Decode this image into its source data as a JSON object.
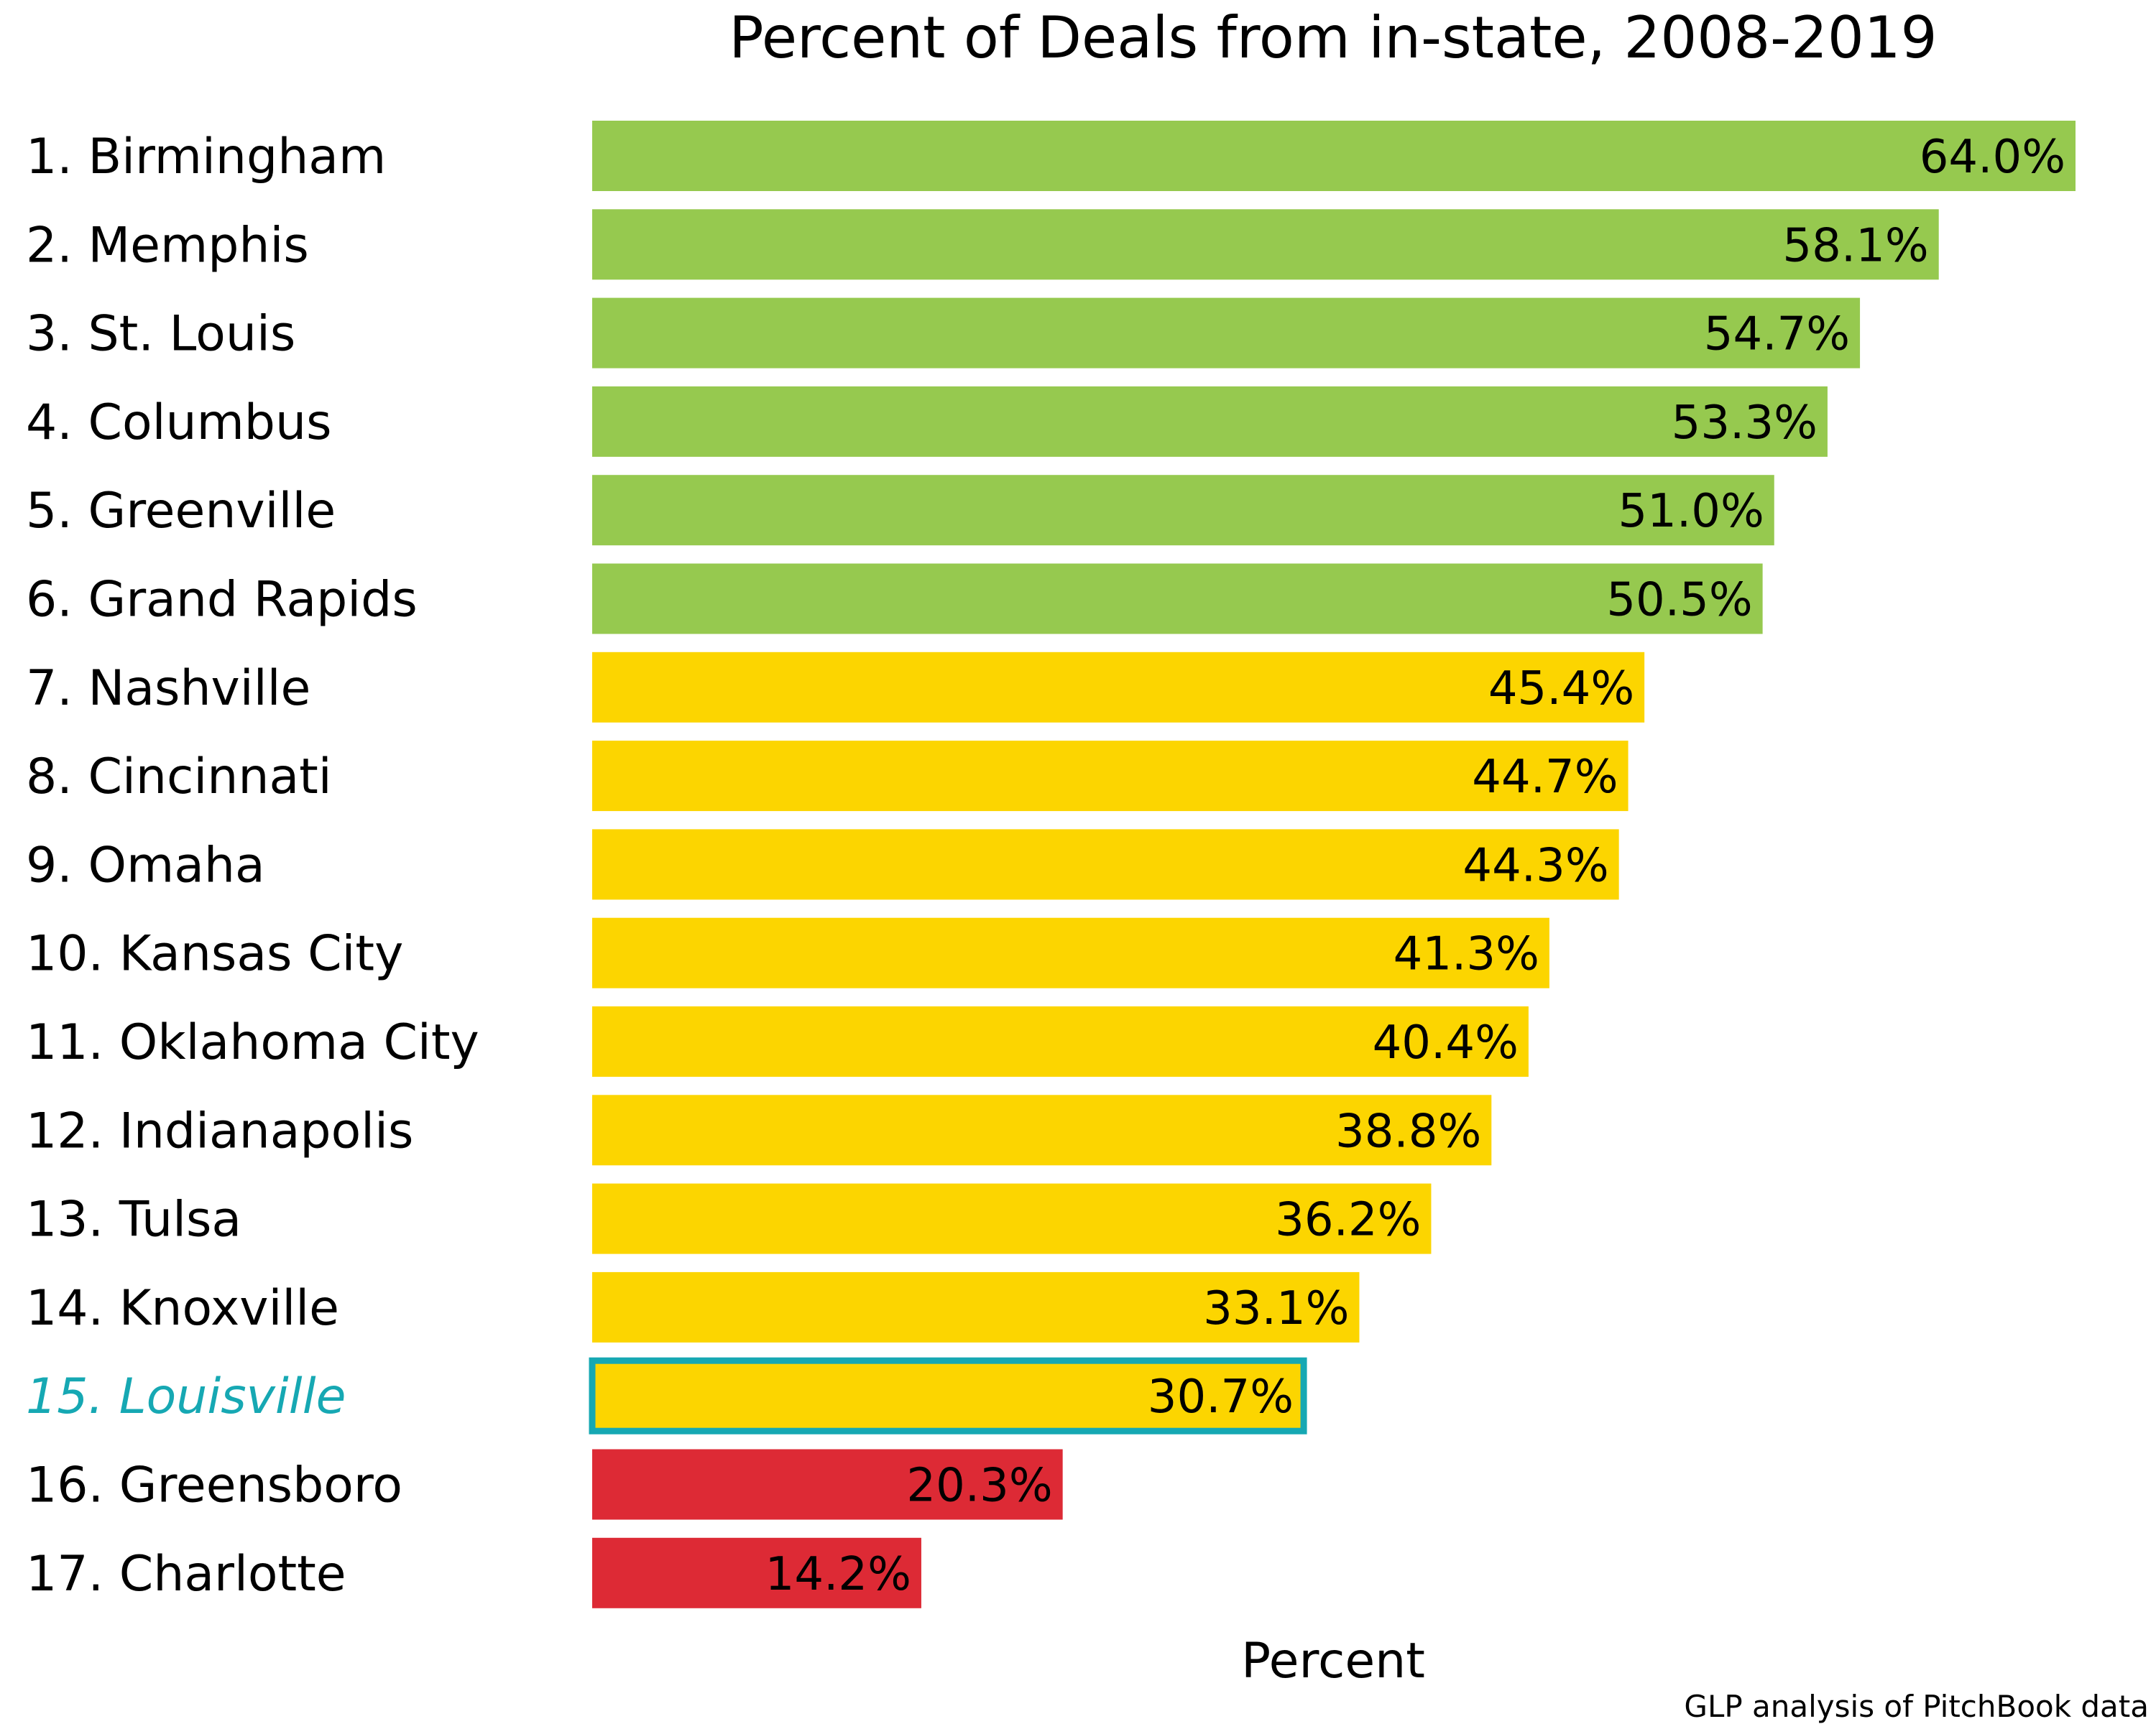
{
  "chart_data": {
    "type": "bar",
    "orientation": "horizontal",
    "title": "Percent of Deals from in-state, 2008-2019",
    "xlabel": "Percent",
    "ylabel": "",
    "source": "GLP analysis of PitchBook data",
    "xlim": [
      0,
      64
    ],
    "grid": false,
    "categories": [
      "1. Birmingham",
      "2. Memphis",
      "3. St. Louis",
      "4. Columbus",
      "5. Greenville",
      "6. Grand Rapids",
      "7. Nashville",
      "8. Cincinnati",
      "9. Omaha",
      "10. Kansas City",
      "11. Oklahoma City",
      "12. Indianapolis",
      "13. Tulsa",
      "14. Knoxville",
      "15. Louisville",
      "16. Greensboro",
      "17. Charlotte"
    ],
    "values": [
      64.0,
      58.1,
      54.7,
      53.3,
      51.0,
      50.5,
      45.4,
      44.7,
      44.3,
      41.3,
      40.4,
      38.8,
      36.2,
      33.1,
      30.7,
      20.3,
      14.2
    ],
    "value_labels": [
      "64.0%",
      "58.1%",
      "54.7%",
      "53.3%",
      "51.0%",
      "50.5%",
      "45.4%",
      "44.7%",
      "44.3%",
      "41.3%",
      "40.4%",
      "38.8%",
      "36.2%",
      "33.1%",
      "30.7%",
      "20.3%",
      "14.2%"
    ],
    "bar_colors": [
      "#96c94f",
      "#96c94f",
      "#96c94f",
      "#96c94f",
      "#96c94f",
      "#96c94f",
      "#fcd500",
      "#fcd500",
      "#fcd500",
      "#fcd500",
      "#fcd500",
      "#fcd500",
      "#fcd500",
      "#fcd500",
      "#fcd500",
      "#dd2a35",
      "#dd2a35"
    ],
    "highlight_index": 14,
    "highlight_color": "#16a8b3"
  }
}
